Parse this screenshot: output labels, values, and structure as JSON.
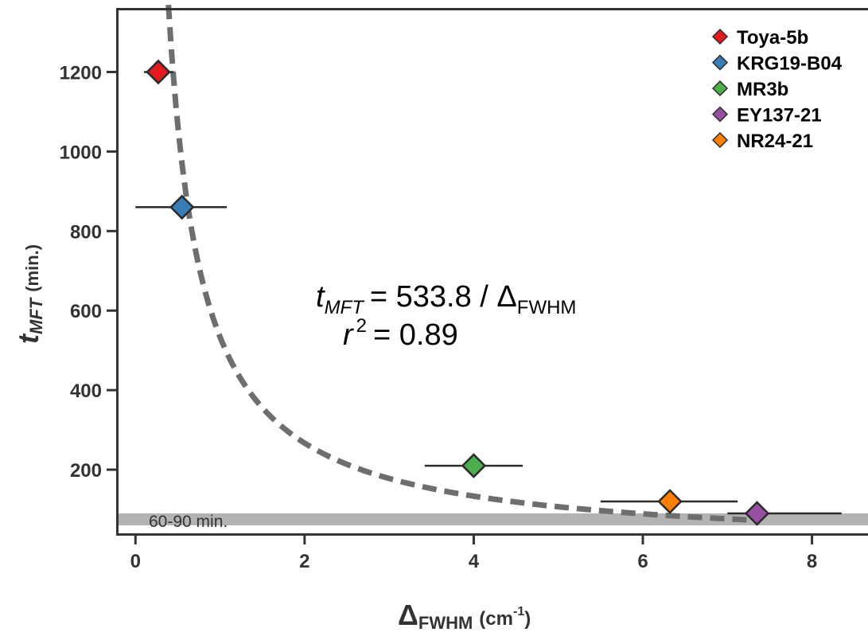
{
  "chart_data": {
    "type": "scatter",
    "xlabel": {
      "main": "Δ",
      "sub": "FWHM",
      "unit_open": "(cm",
      "unit_sup": "-1",
      "unit_close": ")"
    },
    "ylabel": {
      "main": "t",
      "sub": "MFT",
      "unit": "(min.)"
    },
    "xlim": [
      -0.2,
      8.7
    ],
    "ylim": [
      40,
      1355
    ],
    "x_ticks": [
      0,
      2,
      4,
      6,
      8
    ],
    "y_ticks": [
      200,
      400,
      600,
      800,
      1000,
      1200
    ],
    "grid": false,
    "legend_position": "top-right",
    "series": [
      {
        "name": "Toya-5b",
        "color": "#e41a1c",
        "x": 0.27,
        "y": 1200,
        "xerr": [
          0.1,
          0.45
        ]
      },
      {
        "name": "KRG19-B04",
        "color": "#377eb8",
        "x": 0.55,
        "y": 860,
        "xerr": [
          0.0,
          1.08
        ]
      },
      {
        "name": "MR3b",
        "color": "#4daf4a",
        "x": 4.0,
        "y": 210,
        "xerr": [
          3.42,
          4.58
        ]
      },
      {
        "name": "EY137-21",
        "color": "#984ea3",
        "x": 7.35,
        "y": 90,
        "xerr": [
          7.0,
          8.35
        ]
      },
      {
        "name": "NR24-21",
        "color": "#ff7f00",
        "x": 6.32,
        "y": 120,
        "xerr": [
          5.5,
          7.12
        ]
      }
    ],
    "fit": {
      "coefficient": 533.8,
      "x_range": [
        0.39,
        7.25
      ],
      "equation": {
        "lhs": "t",
        "lhs_sub": "MFT",
        "rhs": "= 533.8 / Δ",
        "rhs_sub": "FWHM"
      },
      "r2": {
        "r": "r",
        "sup": "2",
        "value": "= 0.89"
      }
    },
    "band": {
      "y_range": [
        60,
        90
      ],
      "label": "60-90 min.",
      "color": "#b3b3b3"
    }
  }
}
